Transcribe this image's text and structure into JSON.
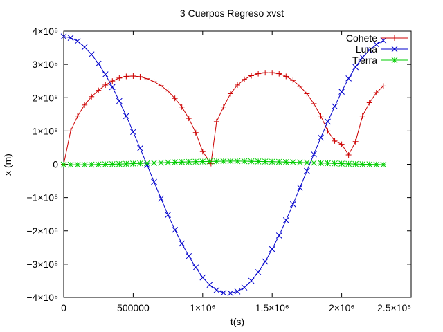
{
  "chart_data": {
    "type": "line",
    "title": "3 Cuerpos Regreso xvst",
    "xlabel": "t(s)",
    "ylabel": "x (m)",
    "xlim": [
      0,
      2500000
    ],
    "ylim": [
      -400000000,
      400000000
    ],
    "x_ticks": [
      {
        "value": 0,
        "label": "0"
      },
      {
        "value": 500000,
        "label": "500000"
      },
      {
        "value": 1000000,
        "label": "1×10⁶"
      },
      {
        "value": 1500000,
        "label": "1.5×10⁶"
      },
      {
        "value": 2000000,
        "label": "2×10⁶"
      },
      {
        "value": 2500000,
        "label": "2.5×10⁶"
      }
    ],
    "y_ticks": [
      {
        "value": 400000000,
        "label": "4×10⁸"
      },
      {
        "value": 300000000,
        "label": "3×10⁸"
      },
      {
        "value": 200000000,
        "label": "2×10⁸"
      },
      {
        "value": 100000000,
        "label": "1×10⁸"
      },
      {
        "value": 0,
        "label": "0"
      },
      {
        "value": -100000000,
        "label": "−1×10⁸"
      },
      {
        "value": -200000000,
        "label": "−2×10⁸"
      },
      {
        "value": -300000000,
        "label": "−3×10⁸"
      },
      {
        "value": -400000000,
        "label": "−4×10⁸"
      }
    ],
    "grid": false,
    "legend_position": "top-right",
    "series": [
      {
        "name": "Cohete",
        "color": "#cc0000",
        "marker": "plus",
        "x": [
          0,
          50000,
          100000,
          150000,
          200000,
          250000,
          300000,
          350000,
          400000,
          450000,
          500000,
          550000,
          600000,
          650000,
          700000,
          750000,
          800000,
          850000,
          900000,
          950000,
          1000000,
          1060000,
          1100000,
          1150000,
          1200000,
          1250000,
          1300000,
          1350000,
          1400000,
          1450000,
          1500000,
          1550000,
          1600000,
          1650000,
          1700000,
          1750000,
          1800000,
          1850000,
          1900000,
          1950000,
          2000000,
          2050000,
          2100000,
          2150000,
          2200000,
          2250000,
          2300000
        ],
        "y": [
          0,
          100000000,
          145000000,
          178000000,
          203000000,
          222000000,
          238000000,
          250000000,
          259000000,
          264000000,
          265000000,
          263000000,
          257000000,
          248000000,
          236000000,
          220000000,
          198000000,
          172000000,
          138000000,
          95000000,
          38000000,
          2000000,
          128000000,
          172000000,
          212000000,
          238000000,
          255000000,
          266000000,
          272000000,
          275000000,
          275000000,
          272000000,
          264000000,
          252000000,
          234000000,
          212000000,
          182000000,
          145000000,
          100000000,
          70000000,
          60000000,
          28000000,
          68000000,
          145000000,
          185000000,
          215000000,
          235000000
        ]
      },
      {
        "name": "Luna",
        "color": "#0000cc",
        "marker": "cross",
        "x": [
          0,
          50000,
          100000,
          150000,
          200000,
          250000,
          300000,
          350000,
          400000,
          450000,
          500000,
          550000,
          600000,
          650000,
          700000,
          750000,
          800000,
          850000,
          900000,
          950000,
          1000000,
          1050000,
          1100000,
          1150000,
          1200000,
          1250000,
          1300000,
          1350000,
          1400000,
          1450000,
          1500000,
          1550000,
          1600000,
          1650000,
          1700000,
          1750000,
          1800000,
          1850000,
          1900000,
          1950000,
          2000000,
          2050000,
          2100000,
          2150000,
          2200000,
          2250000,
          2300000
        ],
        "y": [
          384000000,
          380000000,
          370000000,
          352000000,
          330000000,
          302000000,
          270000000,
          232000000,
          190000000,
          145000000,
          97000000,
          48000000,
          -2000000,
          -53000000,
          -103000000,
          -152000000,
          -197000000,
          -238000000,
          -276000000,
          -310000000,
          -340000000,
          -362000000,
          -378000000,
          -386000000,
          -387000000,
          -382000000,
          -370000000,
          -350000000,
          -324000000,
          -292000000,
          -255000000,
          -214000000,
          -168000000,
          -120000000,
          -70000000,
          -20000000,
          30000000,
          80000000,
          128000000,
          174000000,
          218000000,
          258000000,
          292000000,
          321000000,
          343000000,
          360000000,
          372000000
        ]
      },
      {
        "name": "Tierra",
        "color": "#00cc00",
        "marker": "star",
        "x": [
          0,
          50000,
          100000,
          150000,
          200000,
          250000,
          300000,
          350000,
          400000,
          450000,
          500000,
          550000,
          600000,
          650000,
          700000,
          750000,
          800000,
          850000,
          900000,
          950000,
          1000000,
          1050000,
          1100000,
          1150000,
          1200000,
          1250000,
          1300000,
          1350000,
          1400000,
          1450000,
          1500000,
          1550000,
          1600000,
          1650000,
          1700000,
          1750000,
          1800000,
          1850000,
          1900000,
          1950000,
          2000000,
          2050000,
          2100000,
          2150000,
          2200000,
          2250000,
          2300000
        ],
        "y": [
          -1000000,
          -1200000,
          -1300000,
          -1200000,
          -1000000,
          -700000,
          -300000,
          200000,
          700000,
          1300000,
          2000000,
          2700000,
          3400000,
          4100000,
          4800000,
          5500000,
          6100000,
          6700000,
          7200000,
          7700000,
          8200000,
          8600000,
          9000000,
          9300000,
          9500000,
          9500000,
          9300000,
          9000000,
          8600000,
          8200000,
          7700000,
          7200000,
          6700000,
          6100000,
          5500000,
          4900000,
          4300000,
          3700000,
          3100000,
          2500000,
          1900000,
          1300000,
          700000,
          200000,
          -300000,
          -700000,
          -1000000
        ]
      }
    ]
  }
}
